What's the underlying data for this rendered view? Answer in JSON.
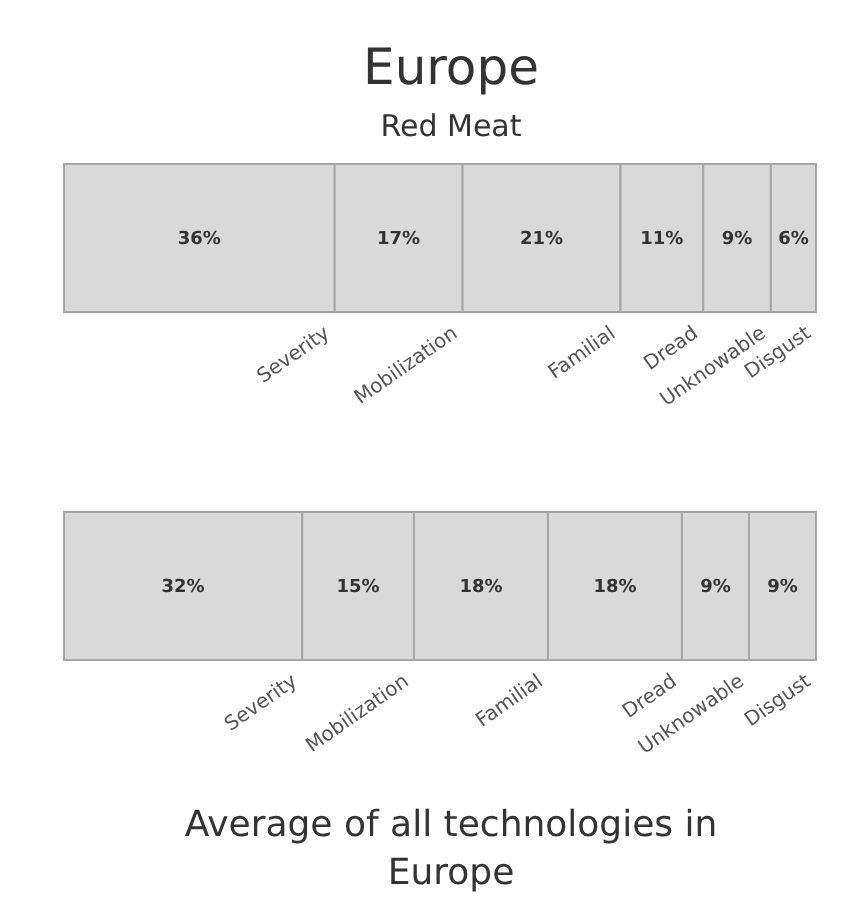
{
  "chart_data": [
    {
      "type": "bar",
      "title": "Europe",
      "subtitle": "Red Meat",
      "orientation": "horizontal",
      "stacked": true,
      "categories": [
        null
      ],
      "series": [
        {
          "name": "Severity",
          "color": "#d9d9d9",
          "values": [
            36
          ],
          "value_labels": [
            "36%"
          ]
        },
        {
          "name": "Mobilization",
          "color": "#d9d9d9",
          "values": [
            17
          ],
          "value_labels": [
            "17%"
          ]
        },
        {
          "name": "Familial",
          "color": "#d9d9d9",
          "values": [
            21
          ],
          "value_labels": [
            "21%"
          ]
        },
        {
          "name": "Dread",
          "color": "#d9d9d9",
          "values": [
            11
          ],
          "value_labels": [
            "11%"
          ]
        },
        {
          "name": "Unknowable",
          "color": "#d9d9d9",
          "values": [
            9
          ],
          "value_labels": [
            "9%"
          ]
        },
        {
          "name": "Disgust",
          "color": "#d9d9d9",
          "values": [
            6
          ],
          "value_labels": [
            "6%"
          ]
        }
      ]
    },
    {
      "type": "bar",
      "title": "Average of all technologies in Europe",
      "orientation": "horizontal",
      "stacked": true,
      "categories": [
        null
      ],
      "series": [
        {
          "name": "Severity",
          "color": "#d9d9d9",
          "values": [
            32
          ],
          "value_labels": [
            "32%"
          ]
        },
        {
          "name": "Mobilization",
          "color": "#d9d9d9",
          "values": [
            15
          ],
          "value_labels": [
            "15%"
          ]
        },
        {
          "name": "Familial",
          "color": "#d9d9d9",
          "values": [
            18
          ],
          "value_labels": [
            "18%"
          ]
        },
        {
          "name": "Dread",
          "color": "#d9d9d9",
          "values": [
            18
          ],
          "value_labels": [
            "18%"
          ]
        },
        {
          "name": "Unknowable",
          "color": "#d9d9d9",
          "values": [
            9
          ],
          "value_labels": [
            "9%"
          ]
        },
        {
          "name": "Disgust",
          "color": "#d9d9d9",
          "values": [
            9
          ],
          "value_labels": [
            "9%"
          ]
        }
      ]
    }
  ]
}
